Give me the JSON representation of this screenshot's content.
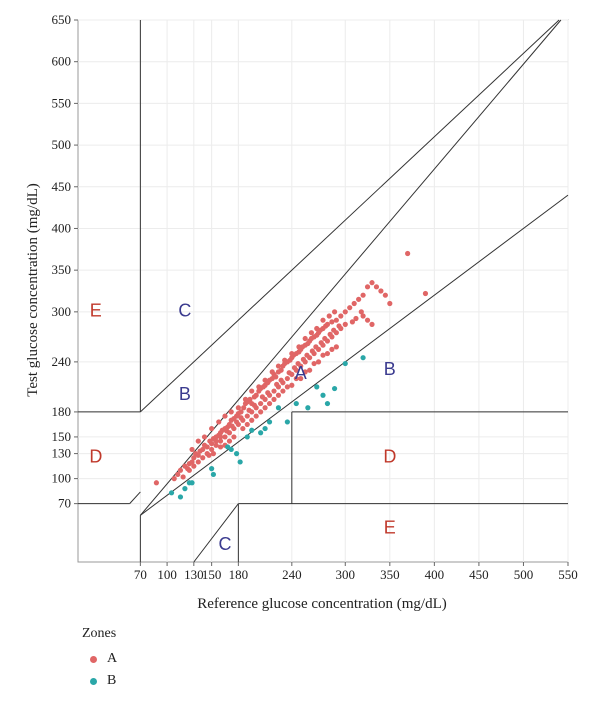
{
  "chart_data": {
    "type": "scatter",
    "xlabel": "Reference glucose concentration (mg/dL)",
    "ylabel": "Test glucose concentration (mg/dL)",
    "xticks": [
      70,
      100,
      130,
      150,
      180,
      240,
      300,
      350,
      400,
      450,
      500,
      550
    ],
    "yticks": [
      70,
      100,
      130,
      150,
      180,
      240,
      300,
      350,
      400,
      450,
      500,
      550,
      600,
      650
    ],
    "xlim": [
      0,
      550
    ],
    "ylim": [
      0,
      650
    ],
    "grid": true,
    "legend_position": "bottom-left",
    "legend_title": "Zones",
    "zone_labels": [
      {
        "text": "E",
        "x": 20,
        "y": 300,
        "color": "#c0392b"
      },
      {
        "text": "C",
        "x": 120,
        "y": 300,
        "color": "#3b3b8f"
      },
      {
        "text": "B",
        "x": 120,
        "y": 200,
        "color": "#3b3b8f"
      },
      {
        "text": "A",
        "x": 250,
        "y": 225,
        "color": "#3b3b8f"
      },
      {
        "text": "B",
        "x": 350,
        "y": 230,
        "color": "#3b3b8f"
      },
      {
        "text": "D",
        "x": 20,
        "y": 125,
        "color": "#c0392b"
      },
      {
        "text": "D",
        "x": 350,
        "y": 125,
        "color": "#c0392b"
      },
      {
        "text": "C",
        "x": 165,
        "y": 20,
        "color": "#3b3b8f"
      },
      {
        "text": "E",
        "x": 350,
        "y": 40,
        "color": "#c0392b"
      }
    ],
    "series": [
      {
        "name": "A",
        "color": "#e06666",
        "points": [
          [
            88,
            95
          ],
          [
            108,
            100
          ],
          [
            112,
            105
          ],
          [
            115,
            110
          ],
          [
            118,
            102
          ],
          [
            120,
            115
          ],
          [
            123,
            112
          ],
          [
            125,
            118
          ],
          [
            128,
            120
          ],
          [
            130,
            125
          ],
          [
            132,
            130
          ],
          [
            135,
            128
          ],
          [
            137,
            133
          ],
          [
            140,
            135
          ],
          [
            142,
            140
          ],
          [
            145,
            138
          ],
          [
            148,
            145
          ],
          [
            150,
            142
          ],
          [
            152,
            148
          ],
          [
            155,
            150
          ],
          [
            158,
            152
          ],
          [
            160,
            155
          ],
          [
            162,
            158
          ],
          [
            165,
            160
          ],
          [
            168,
            162
          ],
          [
            170,
            165
          ],
          [
            172,
            170
          ],
          [
            175,
            172
          ],
          [
            178,
            175
          ],
          [
            180,
            178
          ],
          [
            183,
            180
          ],
          [
            186,
            185
          ],
          [
            188,
            190
          ],
          [
            190,
            192
          ],
          [
            193,
            195
          ],
          [
            195,
            190
          ],
          [
            198,
            198
          ],
          [
            200,
            200
          ],
          [
            203,
            205
          ],
          [
            205,
            208
          ],
          [
            208,
            210
          ],
          [
            210,
            212
          ],
          [
            213,
            215
          ],
          [
            215,
            218
          ],
          [
            218,
            220
          ],
          [
            220,
            225
          ],
          [
            222,
            222
          ],
          [
            225,
            228
          ],
          [
            228,
            230
          ],
          [
            230,
            235
          ],
          [
            232,
            238
          ],
          [
            235,
            240
          ],
          [
            238,
            242
          ],
          [
            240,
            245
          ],
          [
            242,
            248
          ],
          [
            245,
            250
          ],
          [
            248,
            252
          ],
          [
            250,
            255
          ],
          [
            252,
            258
          ],
          [
            255,
            260
          ],
          [
            258,
            262
          ],
          [
            260,
            265
          ],
          [
            262,
            268
          ],
          [
            265,
            270
          ],
          [
            268,
            272
          ],
          [
            270,
            275
          ],
          [
            272,
            278
          ],
          [
            275,
            280
          ],
          [
            278,
            283
          ],
          [
            280,
            285
          ],
          [
            285,
            288
          ],
          [
            290,
            290
          ],
          [
            295,
            295
          ],
          [
            300,
            300
          ],
          [
            305,
            305
          ],
          [
            310,
            310
          ],
          [
            315,
            315
          ],
          [
            320,
            320
          ],
          [
            325,
            330
          ],
          [
            330,
            335
          ],
          [
            335,
            330
          ],
          [
            340,
            325
          ],
          [
            345,
            320
          ],
          [
            350,
            310
          ],
          [
            320,
            295
          ],
          [
            325,
            290
          ],
          [
            330,
            285
          ],
          [
            300,
            285
          ],
          [
            295,
            280
          ],
          [
            290,
            275
          ],
          [
            285,
            270
          ],
          [
            280,
            265
          ],
          [
            275,
            260
          ],
          [
            270,
            255
          ],
          [
            265,
            250
          ],
          [
            260,
            245
          ],
          [
            255,
            240
          ],
          [
            250,
            235
          ],
          [
            245,
            230
          ],
          [
            240,
            225
          ],
          [
            235,
            220
          ],
          [
            230,
            215
          ],
          [
            225,
            210
          ],
          [
            220,
            205
          ],
          [
            215,
            200
          ],
          [
            210,
            195
          ],
          [
            205,
            190
          ],
          [
            200,
            185
          ],
          [
            195,
            180
          ],
          [
            190,
            175
          ],
          [
            185,
            170
          ],
          [
            180,
            165
          ],
          [
            175,
            160
          ],
          [
            170,
            155
          ],
          [
            165,
            150
          ],
          [
            160,
            145
          ],
          [
            155,
            140
          ],
          [
            150,
            135
          ],
          [
            145,
            130
          ],
          [
            140,
            125
          ],
          [
            135,
            120
          ],
          [
            130,
            115
          ],
          [
            125,
            110
          ],
          [
            128,
            135
          ],
          [
            135,
            145
          ],
          [
            142,
            150
          ],
          [
            150,
            160
          ],
          [
            158,
            168
          ],
          [
            165,
            175
          ],
          [
            172,
            180
          ],
          [
            180,
            185
          ],
          [
            188,
            195
          ],
          [
            195,
            205
          ],
          [
            203,
            210
          ],
          [
            210,
            218
          ],
          [
            218,
            228
          ],
          [
            225,
            235
          ],
          [
            232,
            242
          ],
          [
            240,
            250
          ],
          [
            248,
            258
          ],
          [
            255,
            268
          ],
          [
            262,
            275
          ],
          [
            268,
            280
          ],
          [
            275,
            290
          ],
          [
            282,
            295
          ],
          [
            288,
            300
          ],
          [
            165,
            140
          ],
          [
            170,
            145
          ],
          [
            175,
            150
          ],
          [
            185,
            160
          ],
          [
            195,
            170
          ],
          [
            205,
            180
          ],
          [
            215,
            190
          ],
          [
            225,
            200
          ],
          [
            235,
            210
          ],
          [
            245,
            220
          ],
          [
            255,
            228
          ],
          [
            265,
            238
          ],
          [
            275,
            248
          ],
          [
            285,
            255
          ],
          [
            370,
            370
          ],
          [
            390,
            322
          ],
          [
            152,
            130
          ],
          [
            147,
            128
          ],
          [
            160,
            138
          ],
          [
            190,
            165
          ],
          [
            200,
            175
          ],
          [
            210,
            185
          ],
          [
            220,
            195
          ],
          [
            230,
            205
          ],
          [
            240,
            212
          ],
          [
            250,
            220
          ],
          [
            260,
            230
          ],
          [
            270,
            240
          ],
          [
            280,
            250
          ],
          [
            290,
            258
          ],
          [
            155,
            145
          ],
          [
            160,
            150
          ],
          [
            167,
            157
          ],
          [
            173,
            163
          ],
          [
            178,
            168
          ],
          [
            183,
            173
          ],
          [
            192,
            182
          ],
          [
            198,
            188
          ],
          [
            207,
            198
          ],
          [
            213,
            203
          ],
          [
            223,
            213
          ],
          [
            228,
            218
          ],
          [
            237,
            227
          ],
          [
            243,
            233
          ],
          [
            247,
            238
          ],
          [
            253,
            243
          ],
          [
            257,
            248
          ],
          [
            263,
            253
          ],
          [
            267,
            258
          ],
          [
            273,
            263
          ],
          [
            277,
            268
          ],
          [
            283,
            273
          ],
          [
            287,
            278
          ],
          [
            293,
            283
          ],
          [
            318,
            300
          ],
          [
            312,
            292
          ],
          [
            308,
            288
          ]
        ]
      },
      {
        "name": "B",
        "color": "#2aa7a8",
        "points": [
          [
            105,
            83
          ],
          [
            115,
            78
          ],
          [
            120,
            88
          ],
          [
            125,
            95
          ],
          [
            128,
            95
          ],
          [
            150,
            112
          ],
          [
            152,
            105
          ],
          [
            168,
            138
          ],
          [
            172,
            135
          ],
          [
            178,
            130
          ],
          [
            182,
            120
          ],
          [
            190,
            150
          ],
          [
            195,
            158
          ],
          [
            205,
            155
          ],
          [
            210,
            160
          ],
          [
            215,
            168
          ],
          [
            225,
            185
          ],
          [
            235,
            168
          ],
          [
            245,
            190
          ],
          [
            258,
            185
          ],
          [
            268,
            210
          ],
          [
            275,
            200
          ],
          [
            280,
            190
          ],
          [
            288,
            208
          ],
          [
            300,
            238
          ],
          [
            320,
            245
          ]
        ]
      }
    ]
  }
}
